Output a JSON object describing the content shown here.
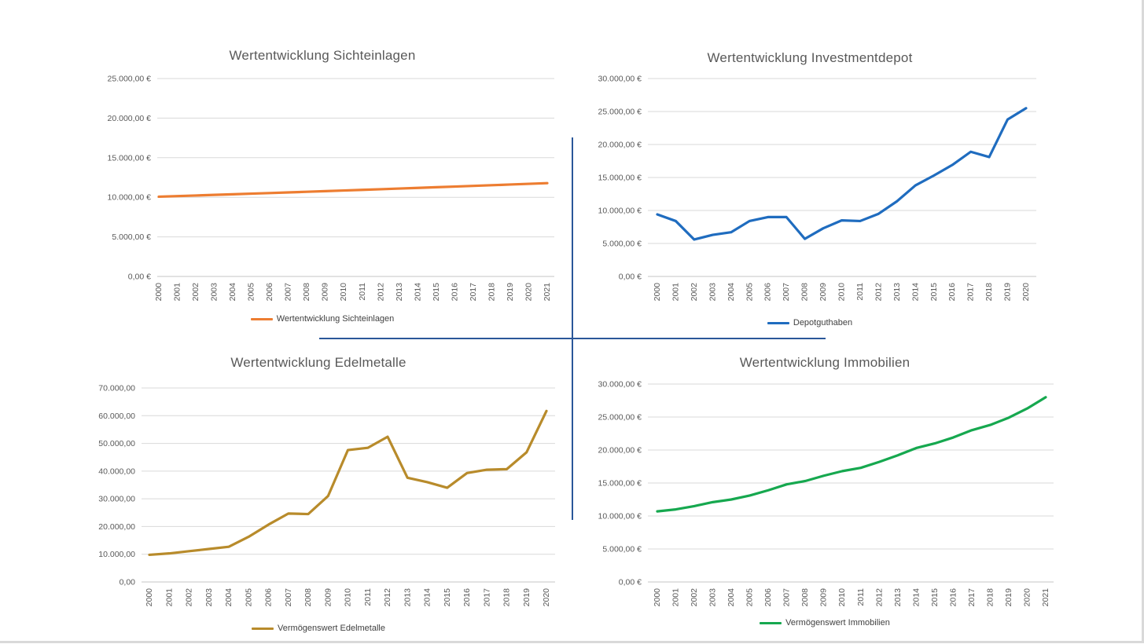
{
  "page": {
    "background": "#ffffff",
    "border_color": "#d9d9d9",
    "divider_color": "#2a5799"
  },
  "chart_data": [
    {
      "type": "line",
      "title": "Wertentwicklung Sichteinlagen",
      "legend": "Wertentwicklung Sichteinlagen",
      "color": "#ED7D31",
      "x": [
        "2000",
        "2001",
        "2002",
        "2003",
        "2004",
        "2005",
        "2006",
        "2007",
        "2008",
        "2009",
        "2010",
        "2011",
        "2012",
        "2013",
        "2014",
        "2015",
        "2016",
        "2017",
        "2018",
        "2019",
        "2020",
        "2021"
      ],
      "values": [
        10075,
        10151,
        10227,
        10303,
        10381,
        10459,
        10537,
        10616,
        10696,
        10776,
        10857,
        10938,
        11020,
        11103,
        11186,
        11270,
        11354,
        11440,
        11525,
        11612,
        11699,
        11787
      ],
      "ylim": [
        0,
        25000
      ],
      "ytick_step": 5000,
      "ytick_labels": [
        "0,00 €",
        "5.000,00 €",
        "10.000,00 €",
        "15.000,00 €",
        "20.000,00 €",
        "25.000,00 €"
      ],
      "grid": true,
      "legend_position": "bottom"
    },
    {
      "type": "line",
      "title": "Wertentwicklung Investmentdepot",
      "legend": "Depotguthaben",
      "color": "#1F6CBF",
      "x": [
        "2000",
        "2001",
        "2002",
        "2003",
        "2004",
        "2005",
        "2006",
        "2007",
        "2008",
        "2009",
        "2010",
        "2011",
        "2012",
        "2013",
        "2014",
        "2015",
        "2016",
        "2017",
        "2018",
        "2019",
        "2020"
      ],
      "values": [
        9400,
        8400,
        5600,
        6300,
        6700,
        8400,
        9000,
        9000,
        5700,
        7300,
        8500,
        8400,
        9500,
        11400,
        13800,
        15300,
        16900,
        18900,
        18100,
        23800,
        25500
      ],
      "ylim": [
        0,
        30000
      ],
      "ytick_step": 5000,
      "ytick_labels": [
        "0,00 €",
        "5.000,00 €",
        "10.000,00 €",
        "15.000,00 €",
        "20.000,00 €",
        "25.000,00 €",
        "30.000,00 €"
      ],
      "grid": true,
      "legend_position": "bottom"
    },
    {
      "type": "line",
      "title": "Wertentwicklung Edelmetalle",
      "legend": "Vermögenswert Edelmetalle",
      "color": "#B88B2B",
      "x": [
        "2000",
        "2001",
        "2002",
        "2003",
        "2004",
        "2005",
        "2006",
        "2007",
        "2008",
        "2009",
        "2010",
        "2011",
        "2012",
        "2013",
        "2014",
        "2015",
        "2016",
        "2017",
        "2018",
        "2019",
        "2020"
      ],
      "values": [
        9800,
        10300,
        11100,
        11900,
        12700,
        16300,
        20700,
        24700,
        24500,
        31000,
        47600,
        48400,
        52400,
        37600,
        36000,
        34000,
        39300,
        40500,
        40700,
        46800,
        61700
      ],
      "ylim": [
        0,
        70000
      ],
      "ytick_step": 10000,
      "ytick_labels": [
        "0,00",
        "10.000,00",
        "20.000,00",
        "30.000,00",
        "40.000,00",
        "50.000,00",
        "60.000,00",
        "70.000,00"
      ],
      "grid": true,
      "legend_position": "bottom"
    },
    {
      "type": "line",
      "title": "Wertentwicklung Immobilien",
      "legend": "Vermögenswert Immobilien",
      "color": "#16A84F",
      "x": [
        "2000",
        "2001",
        "2002",
        "2003",
        "2004",
        "2005",
        "2006",
        "2007",
        "2008",
        "2009",
        "2010",
        "2011",
        "2012",
        "2013",
        "2014",
        "2015",
        "2016",
        "2017",
        "2018",
        "2019",
        "2020",
        "2021"
      ],
      "values": [
        10700,
        11000,
        11500,
        12100,
        12500,
        13100,
        13900,
        14800,
        15300,
        16100,
        16800,
        17300,
        18200,
        19200,
        20300,
        21000,
        21900,
        23000,
        23800,
        24900,
        26300,
        28000
      ],
      "ylim": [
        0,
        30000
      ],
      "ytick_step": 5000,
      "ytick_labels": [
        "0,00 €",
        "5.000,00 €",
        "10.000,00 €",
        "15.000,00 €",
        "20.000,00 €",
        "25.000,00 €",
        "30.000,00 €"
      ],
      "grid": true,
      "legend_position": "bottom"
    }
  ]
}
